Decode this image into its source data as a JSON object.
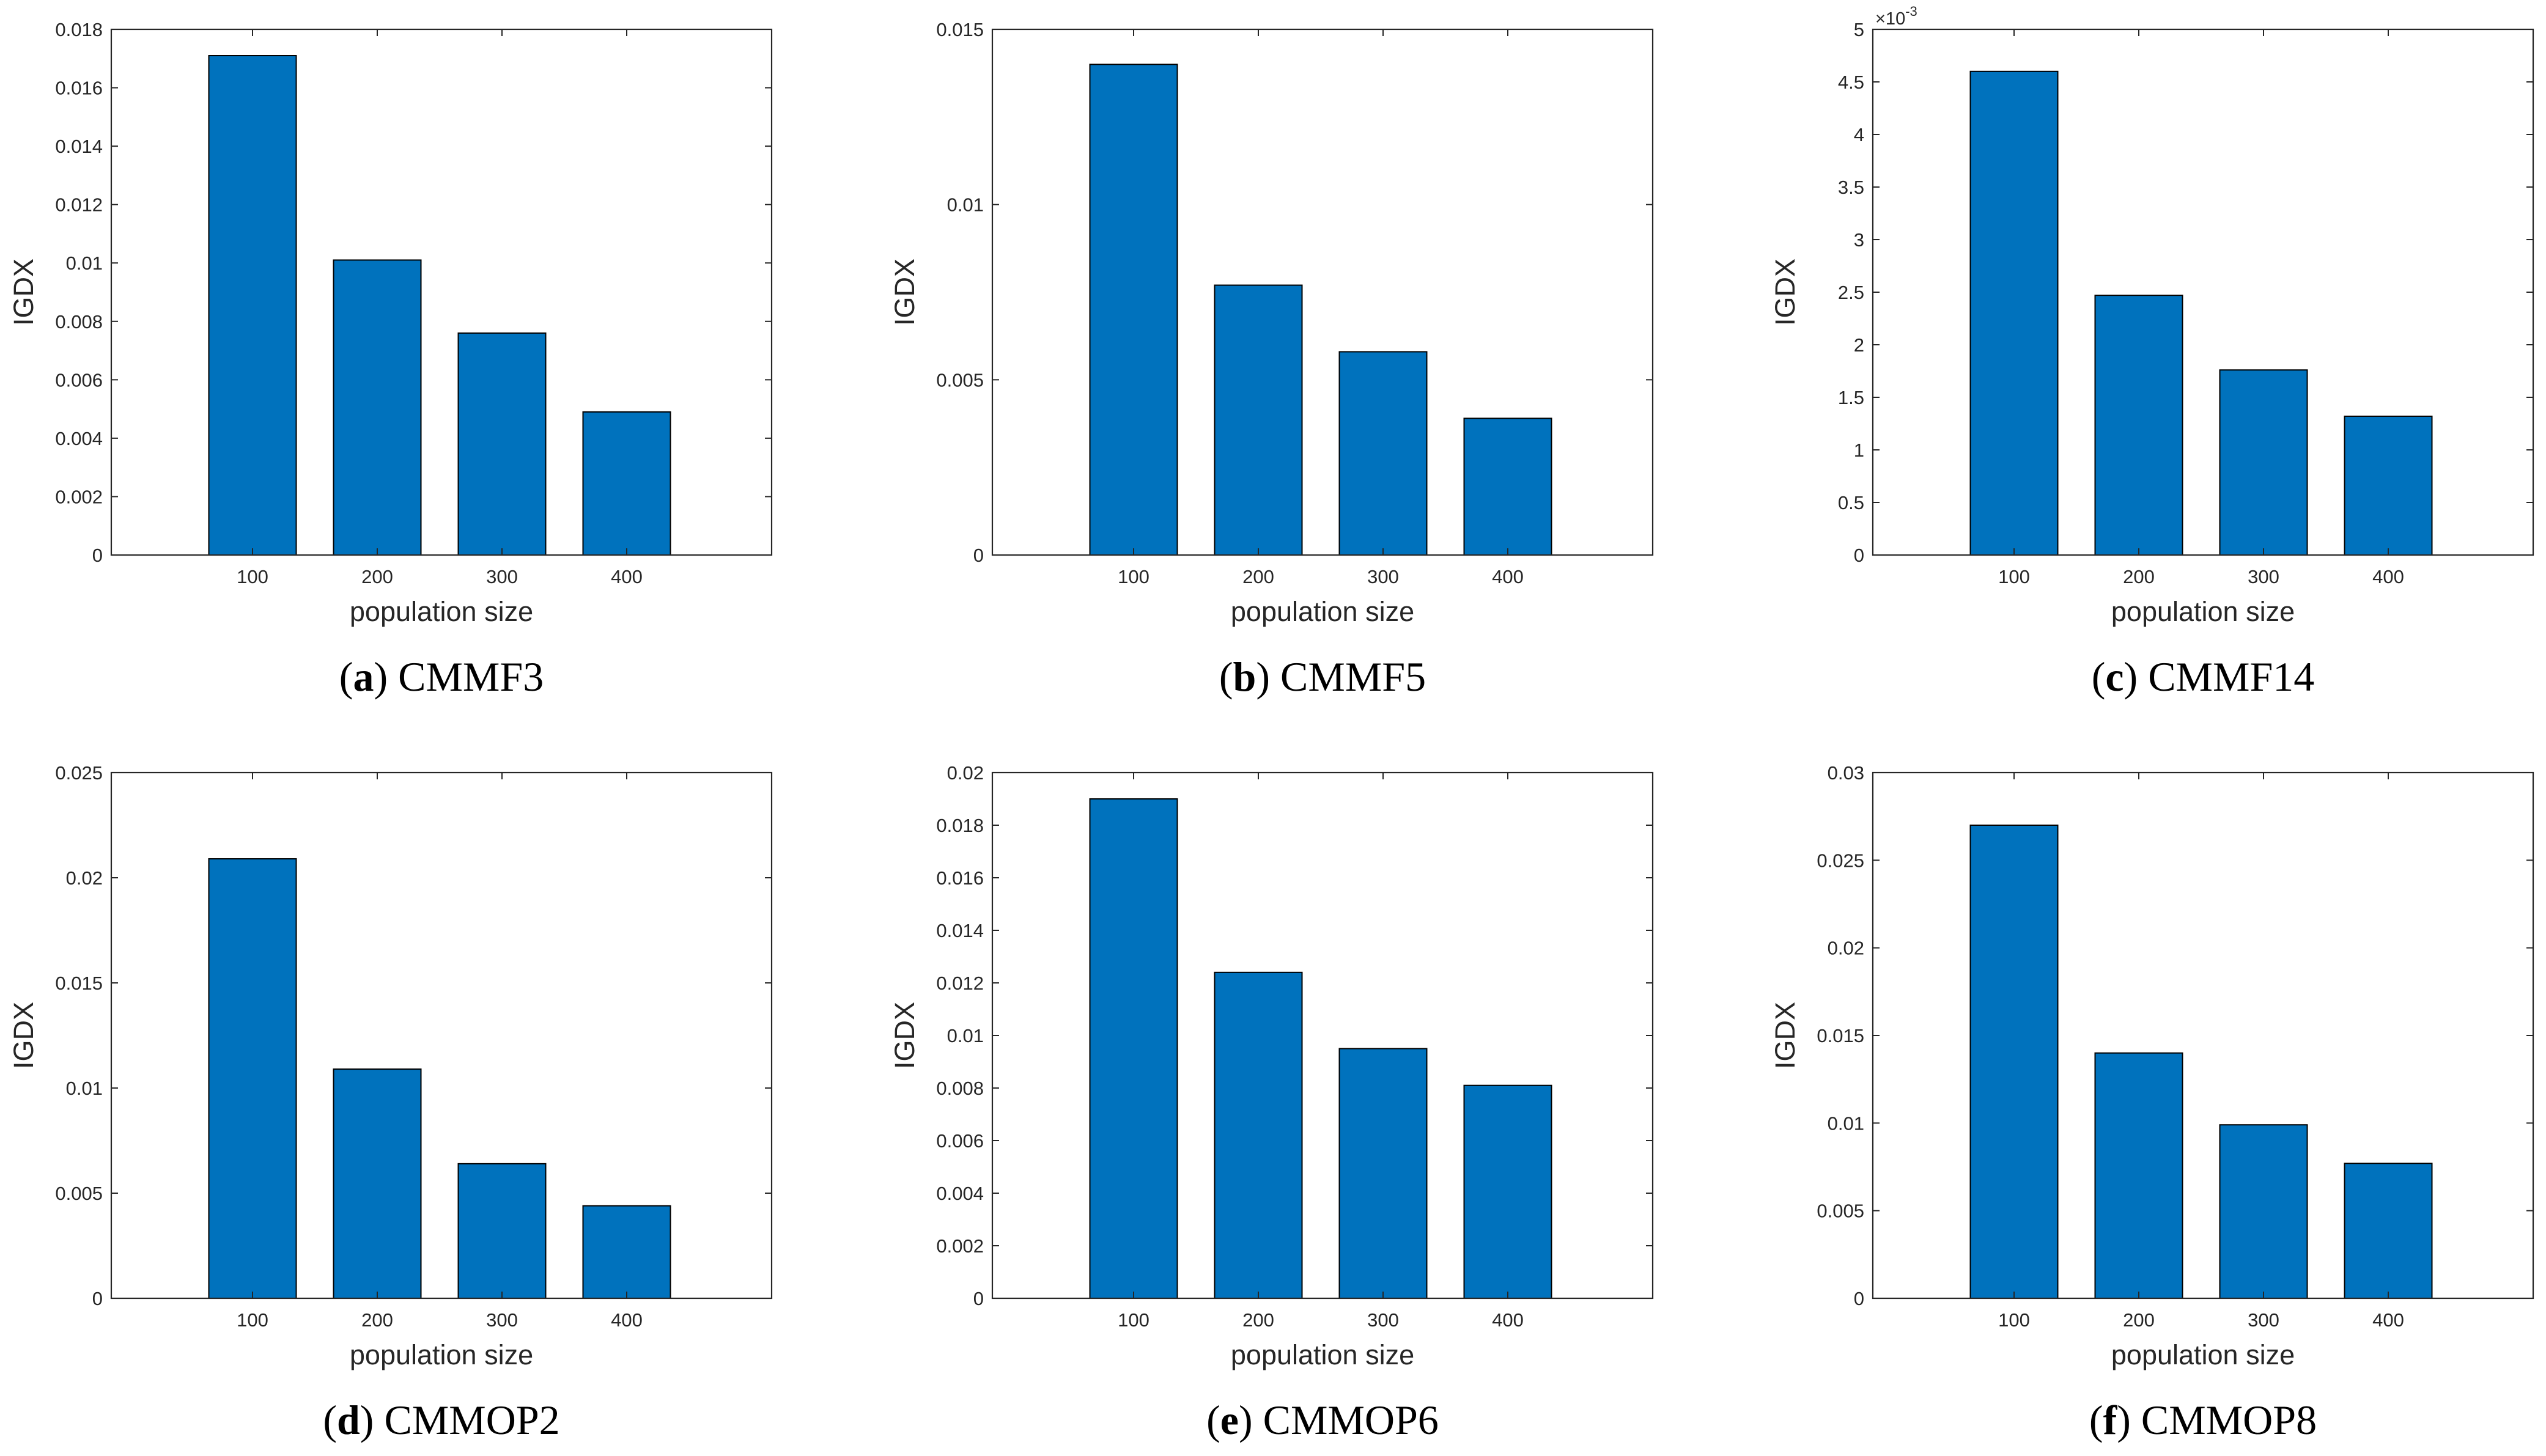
{
  "figure": {
    "bar_color": "#0072BD",
    "bar_edge_color": "#000000",
    "axis_color": "#262626"
  },
  "chart_data": [
    {
      "type": "bar",
      "caption_letter": "a",
      "caption_name": "CMMF3",
      "categories": [
        "100",
        "200",
        "300",
        "400"
      ],
      "values": [
        0.0171,
        0.0101,
        0.0076,
        0.0049
      ],
      "xlabel": "population size",
      "ylabel": "IGDX",
      "ylim": [
        0,
        0.018
      ],
      "yticks": [
        "0",
        "0.002",
        "0.004",
        "0.006",
        "0.008",
        "0.01",
        "0.012",
        "0.014",
        "0.016",
        "0.018"
      ],
      "exponent": ""
    },
    {
      "type": "bar",
      "caption_letter": "b",
      "caption_name": "CMMF5",
      "categories": [
        "100",
        "200",
        "300",
        "400"
      ],
      "values": [
        0.014,
        0.0077,
        0.0058,
        0.0039
      ],
      "xlabel": "population size",
      "ylabel": "IGDX",
      "ylim": [
        0,
        0.015
      ],
      "yticks": [
        "0",
        "0.005",
        "0.01",
        "0.015"
      ],
      "exponent": ""
    },
    {
      "type": "bar",
      "caption_letter": "c",
      "caption_name": "CMMF14",
      "categories": [
        "100",
        "200",
        "300",
        "400"
      ],
      "values": [
        4.6,
        2.47,
        1.76,
        1.32
      ],
      "xlabel": "population size",
      "ylabel": "IGDX",
      "ylim": [
        0,
        5
      ],
      "yticks": [
        "0",
        "0.5",
        "1",
        "1.5",
        "2",
        "2.5",
        "3",
        "3.5",
        "4",
        "4.5",
        "5"
      ],
      "exponent": "×10",
      "exponent_power": "-3"
    },
    {
      "type": "bar",
      "caption_letter": "d",
      "caption_name": "CMMOP2",
      "categories": [
        "100",
        "200",
        "300",
        "400"
      ],
      "values": [
        0.0209,
        0.0109,
        0.0064,
        0.0044
      ],
      "xlabel": "population size",
      "ylabel": "IGDX",
      "ylim": [
        0,
        0.025
      ],
      "yticks": [
        "0",
        "0.005",
        "0.01",
        "0.015",
        "0.02",
        "0.025"
      ],
      "exponent": ""
    },
    {
      "type": "bar",
      "caption_letter": "e",
      "caption_name": "CMMOP6",
      "categories": [
        "100",
        "200",
        "300",
        "400"
      ],
      "values": [
        0.019,
        0.0124,
        0.0095,
        0.0081
      ],
      "xlabel": "population size",
      "ylabel": "IGDX",
      "ylim": [
        0,
        0.02
      ],
      "yticks": [
        "0",
        "0.002",
        "0.004",
        "0.006",
        "0.008",
        "0.01",
        "0.012",
        "0.014",
        "0.016",
        "0.018",
        "0.02"
      ],
      "exponent": ""
    },
    {
      "type": "bar",
      "caption_letter": "f",
      "caption_name": "CMMOP8",
      "categories": [
        "100",
        "200",
        "300",
        "400"
      ],
      "values": [
        0.027,
        0.014,
        0.0099,
        0.0077
      ],
      "xlabel": "population size",
      "ylabel": "IGDX",
      "ylim": [
        0,
        0.03
      ],
      "yticks": [
        "0",
        "0.005",
        "0.01",
        "0.015",
        "0.02",
        "0.025",
        "0.03"
      ],
      "exponent": ""
    }
  ]
}
